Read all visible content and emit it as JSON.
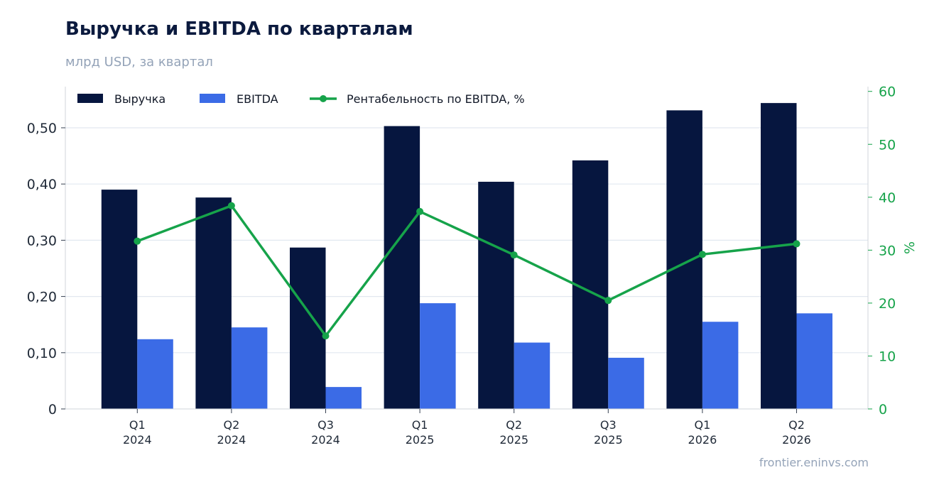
{
  "header": {
    "title": "Выручка и EBITDA по кварталам",
    "subtitle": "млрд USD, за квартал",
    "source": "frontier.eninvs.com"
  },
  "chart_data": {
    "type": "bar",
    "categories": [
      [
        "Q1",
        "2024"
      ],
      [
        "Q2",
        "2024"
      ],
      [
        "Q3",
        "2024"
      ],
      [
        "Q1",
        "2025"
      ],
      [
        "Q2",
        "2025"
      ],
      [
        "Q3",
        "2025"
      ],
      [
        "Q1",
        "2026"
      ],
      [
        "Q2",
        "2026"
      ]
    ],
    "series": [
      {
        "name": "Выручка",
        "kind": "bar",
        "axis": "left",
        "color": "#06163f",
        "values": [
          0.39,
          0.376,
          0.287,
          0.503,
          0.404,
          0.442,
          0.531,
          0.544
        ]
      },
      {
        "name": "EBITDA",
        "kind": "bar",
        "axis": "left",
        "color": "#3b6be6",
        "values": [
          0.124,
          0.145,
          0.039,
          0.188,
          0.118,
          0.091,
          0.155,
          0.17
        ]
      },
      {
        "name": "Рентабельность по EBITDA, %",
        "kind": "line",
        "axis": "right",
        "color": "#16a34a",
        "values": [
          31.7,
          38.4,
          13.8,
          37.3,
          29.1,
          20.5,
          29.2,
          31.2
        ]
      }
    ],
    "y_left": {
      "min": 0,
      "max": 0.5732,
      "ticks": [
        0,
        0.1,
        0.2,
        0.3,
        0.4,
        0.5
      ],
      "tick_labels": [
        "0",
        "0,10",
        "0,20",
        "0,30",
        "0,40",
        "0,50"
      ]
    },
    "y_right": {
      "label": "%",
      "min": 0,
      "max": 60.9,
      "ticks": [
        0,
        10,
        20,
        30,
        40,
        50,
        60
      ],
      "tick_labels": [
        "0",
        "10",
        "20",
        "30",
        "40",
        "50",
        "60"
      ]
    },
    "grid": true,
    "legend": "top-left",
    "colors": {
      "gridline": "#e2e8f0",
      "axis": "#d1d5db"
    }
  }
}
